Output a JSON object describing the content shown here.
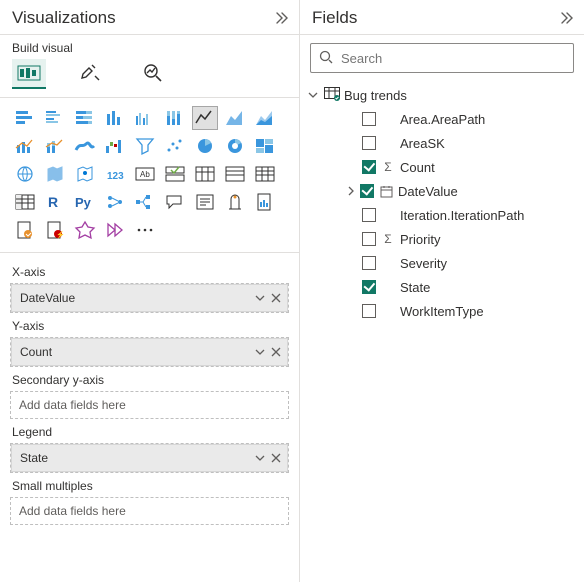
{
  "panes": {
    "visualizations": {
      "title": "Visualizations",
      "subtitle": "Build visual"
    },
    "fields": {
      "title": "Fields",
      "search_placeholder": "Search"
    }
  },
  "viz_gallery": {
    "selected_index": 6,
    "tiles": [
      "stacked-bar",
      "clustered-bar",
      "stacked-100-bar",
      "stacked-column",
      "clustered-column",
      "stacked-100-column",
      "line",
      "area",
      "stacked-area",
      "line-clustered-column",
      "line-stacked-column",
      "ribbon",
      "waterfall",
      "funnel",
      "scatter",
      "pie",
      "donut",
      "treemap",
      "map",
      "filled-map",
      "azure-map",
      "gauge",
      "card",
      "multi-row-card",
      "kpi",
      "slicer",
      "table",
      "matrix",
      "r-visual",
      "py-visual",
      "key-influencers",
      "decomposition-tree",
      "qna",
      "narrative",
      "goals",
      "paginated",
      "power-apps",
      "power-automate",
      "custom-visual",
      "get-more-visuals",
      "more"
    ]
  },
  "wells": {
    "x_axis": {
      "label": "X-axis",
      "value": "DateValue"
    },
    "y_axis": {
      "label": "Y-axis",
      "value": "Count"
    },
    "secondary_y": {
      "label": "Secondary y-axis",
      "placeholder": "Add data fields here"
    },
    "legend": {
      "label": "Legend",
      "value": "State"
    },
    "small_multiples": {
      "label": "Small multiples",
      "placeholder": "Add data fields here"
    }
  },
  "fields_tree": {
    "table_name": "Bug trends",
    "items": [
      {
        "name": "Area.AreaPath",
        "checked": false,
        "glyph": ""
      },
      {
        "name": "AreaSK",
        "checked": false,
        "glyph": ""
      },
      {
        "name": "Count",
        "checked": true,
        "glyph": "sigma"
      },
      {
        "name": "DateValue",
        "checked": true,
        "glyph": "calendar",
        "expandable": true
      },
      {
        "name": "Iteration.IterationPath",
        "checked": false,
        "glyph": ""
      },
      {
        "name": "Priority",
        "checked": false,
        "glyph": "sigma"
      },
      {
        "name": "Severity",
        "checked": false,
        "glyph": ""
      },
      {
        "name": "State",
        "checked": true,
        "glyph": ""
      },
      {
        "name": "WorkItemType",
        "checked": false,
        "glyph": ""
      }
    ]
  },
  "colors": {
    "accent": "#117865",
    "icon_blue": "#3a96dd",
    "text": "#323130",
    "muted": "#605e5c",
    "border": "#e1dfdd"
  }
}
